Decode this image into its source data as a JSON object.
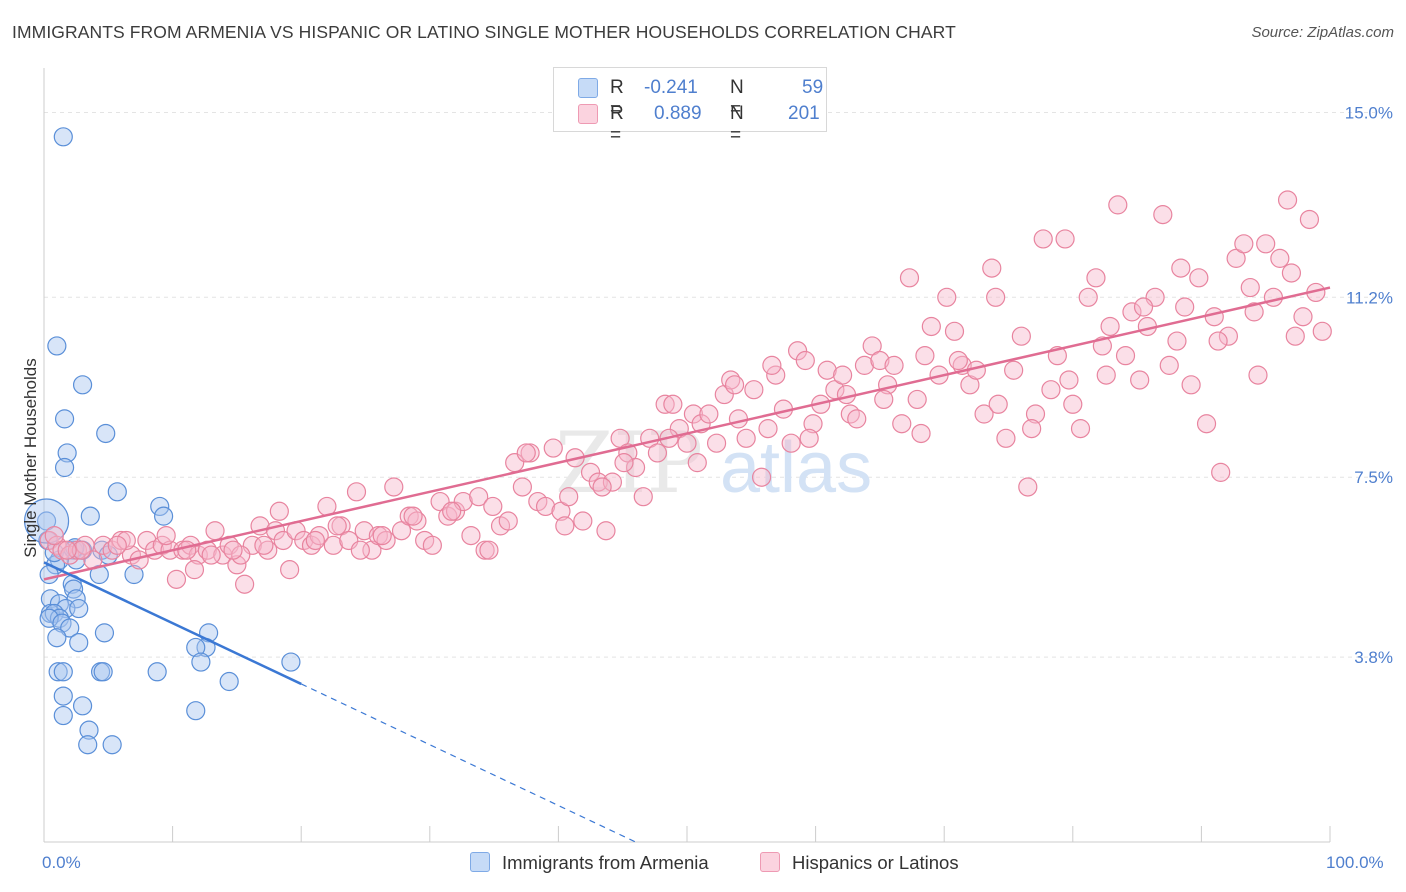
{
  "header": {
    "title": "IMMIGRANTS FROM ARMENIA VS HISPANIC OR LATINO SINGLE MOTHER HOUSEHOLDS CORRELATION CHART",
    "source": "Source: ZipAtlas.com"
  },
  "legend": {
    "rows": [
      {
        "r_label": "R =",
        "r_value": "-0.241",
        "n_label": "N =",
        "n_value": "59",
        "color": "#a8c6ef"
      },
      {
        "r_label": "R =",
        "r_value": "0.889",
        "n_label": "N =",
        "n_value": "201",
        "color": "#f6b8cb"
      }
    ]
  },
  "bottom_legend": [
    {
      "label": "Immigrants from Armenia",
      "color": "#a8c6ef"
    },
    {
      "label": "Hispanics or Latinos",
      "color": "#f6b8cb"
    }
  ],
  "watermark": {
    "part1": "ZIP",
    "part2": "atlas"
  },
  "chart_data": {
    "type": "scatter",
    "title": "IMMIGRANTS FROM ARMENIA VS HISPANIC OR LATINO SINGLE MOTHER HOUSEHOLDS CORRELATION CHART",
    "ylabel": "Single Mother Households",
    "xlim": [
      0,
      100
    ],
    "ylim": [
      0,
      15.75
    ],
    "x_tick_labels": [
      "0.0%",
      "100.0%"
    ],
    "y_ticks": [
      3.8,
      7.5,
      11.2,
      15.0
    ],
    "y_tick_labels": [
      "3.8%",
      "7.5%",
      "11.2%",
      "15.0%"
    ],
    "grid": true,
    "series": [
      {
        "name": "Immigrants from Armenia",
        "color": "#a8c6ef",
        "stroke": "#5a8fd8",
        "trend": {
          "x0": 0,
          "y0": 5.75,
          "x1": 20,
          "y1": 3.25,
          "dashed_to_x": 46,
          "line_color": "#3b78d4"
        },
        "points": [
          [
            1.5,
            14.5
          ],
          [
            1.0,
            10.2
          ],
          [
            3.0,
            9.4
          ],
          [
            1.6,
            8.7
          ],
          [
            4.8,
            8.4
          ],
          [
            1.8,
            8.0
          ],
          [
            1.6,
            7.7
          ],
          [
            5.7,
            7.2
          ],
          [
            9.0,
            6.9
          ],
          [
            9.3,
            6.7
          ],
          [
            3.6,
            6.7
          ],
          [
            0.2,
            6.6
          ],
          [
            0.3,
            6.2
          ],
          [
            2.3,
            6.0
          ],
          [
            4.5,
            6.0
          ],
          [
            5.0,
            5.9
          ],
          [
            2.5,
            5.8
          ],
          [
            1.2,
            5.8
          ],
          [
            0.9,
            5.7
          ],
          [
            0.4,
            5.5
          ],
          [
            7.0,
            5.5
          ],
          [
            4.3,
            5.5
          ],
          [
            2.2,
            5.3
          ],
          [
            2.3,
            5.2
          ],
          [
            0.5,
            5.0
          ],
          [
            2.5,
            5.0
          ],
          [
            1.2,
            4.9
          ],
          [
            1.7,
            4.8
          ],
          [
            2.7,
            4.8
          ],
          [
            0.5,
            4.7
          ],
          [
            0.8,
            4.7
          ],
          [
            1.2,
            4.6
          ],
          [
            0.4,
            4.6
          ],
          [
            1.4,
            4.5
          ],
          [
            2.0,
            4.4
          ],
          [
            12.8,
            4.3
          ],
          [
            4.7,
            4.3
          ],
          [
            1.0,
            4.2
          ],
          [
            2.7,
            4.1
          ],
          [
            12.6,
            4.0
          ],
          [
            11.8,
            4.0
          ],
          [
            12.2,
            3.7
          ],
          [
            19.2,
            3.7
          ],
          [
            1.1,
            3.5
          ],
          [
            1.5,
            3.5
          ],
          [
            4.4,
            3.5
          ],
          [
            4.6,
            3.5
          ],
          [
            8.8,
            3.5
          ],
          [
            14.4,
            3.3
          ],
          [
            1.5,
            3.0
          ],
          [
            3.0,
            2.8
          ],
          [
            11.8,
            2.7
          ],
          [
            1.5,
            2.6
          ],
          [
            3.5,
            2.3
          ],
          [
            3.4,
            2.0
          ],
          [
            5.3,
            2.0
          ],
          [
            0.8,
            5.95
          ],
          [
            3.0,
            6.0
          ],
          [
            2.4,
            6.05
          ]
        ]
      },
      {
        "name": "Hispanics or Latinos",
        "color": "#f6b8cb",
        "stroke": "#e8849f",
        "trend": {
          "x0": 0,
          "y0": 5.4,
          "x1": 100,
          "y1": 11.4,
          "line_color": "#e06c92"
        },
        "points": [
          [
            0.4,
            6.2
          ],
          [
            1.0,
            6.1
          ],
          [
            1.4,
            6.0
          ],
          [
            2.0,
            5.9
          ],
          [
            2.6,
            6.0
          ],
          [
            3.2,
            6.1
          ],
          [
            3.8,
            5.8
          ],
          [
            4.6,
            6.1
          ],
          [
            5.3,
            6.0
          ],
          [
            6.0,
            6.2
          ],
          [
            6.8,
            5.9
          ],
          [
            7.4,
            5.8
          ],
          [
            8.0,
            6.2
          ],
          [
            8.6,
            6.0
          ],
          [
            9.2,
            6.1
          ],
          [
            9.8,
            6.0
          ],
          [
            10.3,
            5.4
          ],
          [
            10.8,
            6.0
          ],
          [
            11.4,
            6.1
          ],
          [
            12.0,
            5.9
          ],
          [
            12.7,
            6.0
          ],
          [
            13.3,
            6.4
          ],
          [
            13.9,
            5.9
          ],
          [
            14.4,
            6.1
          ],
          [
            15.0,
            5.7
          ],
          [
            15.6,
            5.3
          ],
          [
            16.2,
            6.1
          ],
          [
            16.8,
            6.5
          ],
          [
            17.4,
            6.0
          ],
          [
            18.0,
            6.4
          ],
          [
            18.6,
            6.2
          ],
          [
            19.1,
            5.6
          ],
          [
            19.6,
            6.4
          ],
          [
            20.2,
            6.2
          ],
          [
            20.8,
            6.1
          ],
          [
            21.4,
            6.3
          ],
          [
            22.0,
            6.9
          ],
          [
            22.5,
            6.1
          ],
          [
            23.1,
            6.5
          ],
          [
            23.7,
            6.2
          ],
          [
            24.3,
            7.2
          ],
          [
            24.9,
            6.4
          ],
          [
            25.5,
            6.0
          ],
          [
            26.0,
            6.3
          ],
          [
            26.6,
            6.2
          ],
          [
            27.2,
            7.3
          ],
          [
            27.8,
            6.4
          ],
          [
            28.4,
            6.7
          ],
          [
            29.0,
            6.6
          ],
          [
            29.6,
            6.2
          ],
          [
            30.2,
            6.1
          ],
          [
            30.8,
            7.0
          ],
          [
            31.4,
            6.7
          ],
          [
            32.0,
            6.8
          ],
          [
            32.6,
            7.0
          ],
          [
            33.2,
            6.3
          ],
          [
            33.8,
            7.1
          ],
          [
            34.3,
            6.0
          ],
          [
            34.9,
            6.9
          ],
          [
            35.5,
            6.5
          ],
          [
            36.1,
            6.6
          ],
          [
            36.6,
            7.8
          ],
          [
            37.2,
            7.3
          ],
          [
            37.8,
            8.0
          ],
          [
            38.4,
            7.0
          ],
          [
            39.0,
            6.9
          ],
          [
            39.6,
            8.1
          ],
          [
            40.2,
            6.8
          ],
          [
            40.8,
            7.1
          ],
          [
            41.3,
            7.9
          ],
          [
            41.9,
            6.6
          ],
          [
            42.5,
            7.6
          ],
          [
            43.1,
            7.4
          ],
          [
            43.7,
            6.4
          ],
          [
            44.2,
            7.4
          ],
          [
            44.8,
            8.3
          ],
          [
            45.4,
            8.0
          ],
          [
            46.0,
            7.7
          ],
          [
            46.6,
            7.1
          ],
          [
            47.1,
            8.3
          ],
          [
            47.7,
            8.0
          ],
          [
            48.3,
            9.0
          ],
          [
            48.9,
            9.0
          ],
          [
            49.4,
            8.5
          ],
          [
            50.0,
            8.2
          ],
          [
            50.5,
            8.8
          ],
          [
            51.1,
            8.6
          ],
          [
            51.7,
            8.8
          ],
          [
            52.3,
            8.2
          ],
          [
            52.9,
            9.2
          ],
          [
            53.4,
            9.5
          ],
          [
            54.0,
            8.7
          ],
          [
            54.6,
            8.3
          ],
          [
            55.2,
            9.3
          ],
          [
            55.8,
            7.5
          ],
          [
            56.3,
            8.5
          ],
          [
            56.9,
            9.6
          ],
          [
            57.5,
            8.9
          ],
          [
            58.1,
            8.2
          ],
          [
            58.6,
            10.1
          ],
          [
            59.2,
            9.9
          ],
          [
            59.8,
            8.6
          ],
          [
            60.4,
            9.0
          ],
          [
            60.9,
            9.7
          ],
          [
            61.5,
            9.3
          ],
          [
            62.1,
            9.6
          ],
          [
            62.7,
            8.8
          ],
          [
            63.2,
            8.7
          ],
          [
            63.8,
            9.8
          ],
          [
            64.4,
            10.2
          ],
          [
            65.0,
            9.9
          ],
          [
            65.6,
            9.4
          ],
          [
            66.1,
            9.8
          ],
          [
            66.7,
            8.6
          ],
          [
            67.3,
            11.6
          ],
          [
            67.9,
            9.1
          ],
          [
            68.5,
            10.0
          ],
          [
            69.0,
            10.6
          ],
          [
            69.6,
            9.6
          ],
          [
            70.2,
            11.2
          ],
          [
            70.8,
            10.5
          ],
          [
            71.4,
            9.8
          ],
          [
            72.0,
            9.4
          ],
          [
            72.5,
            9.7
          ],
          [
            73.1,
            8.8
          ],
          [
            73.7,
            11.8
          ],
          [
            74.2,
            9.0
          ],
          [
            74.8,
            8.3
          ],
          [
            75.4,
            9.7
          ],
          [
            76.0,
            10.4
          ],
          [
            76.5,
            7.3
          ],
          [
            77.1,
            8.8
          ],
          [
            77.7,
            12.4
          ],
          [
            78.3,
            9.3
          ],
          [
            78.8,
            10.0
          ],
          [
            79.4,
            12.4
          ],
          [
            80.0,
            9.0
          ],
          [
            80.6,
            8.5
          ],
          [
            81.2,
            11.2
          ],
          [
            81.8,
            11.6
          ],
          [
            82.3,
            10.2
          ],
          [
            82.9,
            10.6
          ],
          [
            83.5,
            13.1
          ],
          [
            84.1,
            10.0
          ],
          [
            84.6,
            10.9
          ],
          [
            85.2,
            9.5
          ],
          [
            85.8,
            10.6
          ],
          [
            86.4,
            11.2
          ],
          [
            87.0,
            12.9
          ],
          [
            87.5,
            9.8
          ],
          [
            88.1,
            10.3
          ],
          [
            88.7,
            11.0
          ],
          [
            89.2,
            9.4
          ],
          [
            89.8,
            11.6
          ],
          [
            90.4,
            8.6
          ],
          [
            91.0,
            10.8
          ],
          [
            91.5,
            7.6
          ],
          [
            92.1,
            10.4
          ],
          [
            92.7,
            12.0
          ],
          [
            93.3,
            12.3
          ],
          [
            93.8,
            11.4
          ],
          [
            94.4,
            9.6
          ],
          [
            95.0,
            12.3
          ],
          [
            95.6,
            11.2
          ],
          [
            96.1,
            12.0
          ],
          [
            96.7,
            13.2
          ],
          [
            97.3,
            10.4
          ],
          [
            97.9,
            10.8
          ],
          [
            98.4,
            12.8
          ],
          [
            98.9,
            11.3
          ],
          [
            99.4,
            10.5
          ],
          [
            0.8,
            6.3
          ],
          [
            2.9,
            6.0
          ],
          [
            6.4,
            6.2
          ],
          [
            9.5,
            6.3
          ],
          [
            11.1,
            6.0
          ],
          [
            13.0,
            5.9
          ],
          [
            15.3,
            5.9
          ],
          [
            17.1,
            6.1
          ],
          [
            21.1,
            6.2
          ],
          [
            24.6,
            6.0
          ],
          [
            26.3,
            6.3
          ],
          [
            28.7,
            6.7
          ],
          [
            31.7,
            6.8
          ],
          [
            34.6,
            6.0
          ],
          [
            37.5,
            8.0
          ],
          [
            40.5,
            6.5
          ],
          [
            43.4,
            7.3
          ],
          [
            45.1,
            7.8
          ],
          [
            48.6,
            8.3
          ],
          [
            50.8,
            7.8
          ],
          [
            53.7,
            9.4
          ],
          [
            56.6,
            9.8
          ],
          [
            59.5,
            8.3
          ],
          [
            62.4,
            9.2
          ],
          [
            65.3,
            9.1
          ],
          [
            68.2,
            8.4
          ],
          [
            71.1,
            9.9
          ],
          [
            74.0,
            11.2
          ],
          [
            76.8,
            8.5
          ],
          [
            79.7,
            9.5
          ],
          [
            82.6,
            9.6
          ],
          [
            85.5,
            11.0
          ],
          [
            88.4,
            11.8
          ],
          [
            91.3,
            10.3
          ],
          [
            94.1,
            10.9
          ],
          [
            97.0,
            11.7
          ],
          [
            1.8,
            6.0
          ],
          [
            5.7,
            6.1
          ],
          [
            11.7,
            5.6
          ],
          [
            14.7,
            6.0
          ],
          [
            18.3,
            6.8
          ],
          [
            22.8,
            6.5
          ]
        ]
      }
    ]
  }
}
